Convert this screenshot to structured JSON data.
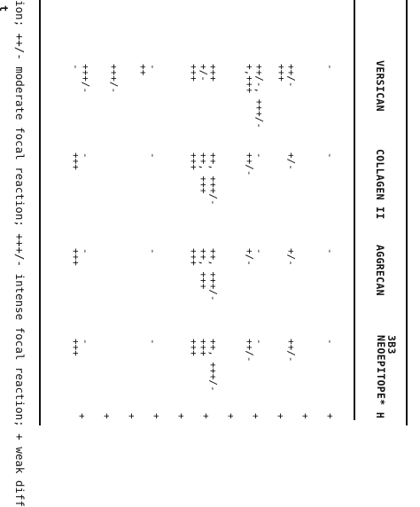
{
  "columns": [
    {
      "name": "VERSICAN"
    },
    {
      "name": "COLLAGEN II"
    },
    {
      "name": "AGGRECAN"
    },
    {
      "name": "3B3",
      "name2": "NEOEPITOPE*"
    }
  ],
  "partial_column": "H",
  "rows": [
    [
      "-",
      "-",
      "-",
      "-"
    ],
    [
      "++/-\n+++",
      "+/-",
      "+/-",
      "++/-"
    ],
    [
      "++/-, +++/-\n+,+++",
      "-\n++/-",
      "-\n+/-",
      "-\n++/-"
    ],
    [
      "+++\n+/-\n+++",
      "++, +++/-\n++, +++\n+++",
      "++, +++/-\n++, +++\n+++",
      "++, +++/-\n+++\n+++"
    ],
    [
      "-\n++",
      "-",
      "-",
      "-"
    ],
    [
      "+++/-",
      "",
      "",
      ""
    ],
    [
      "+++/-\n-",
      "-\n+++",
      "-\n+++",
      "-\n+++"
    ]
  ],
  "right_column": [
    "+",
    "+",
    "+",
    "+",
    "+",
    "+",
    "+",
    "+",
    "+",
    "+",
    "+"
  ],
  "footnote": "ion; ++/- moderate focal reaction; +++/- intense focal reaction; + weak diff",
  "left_fragment": "t"
}
